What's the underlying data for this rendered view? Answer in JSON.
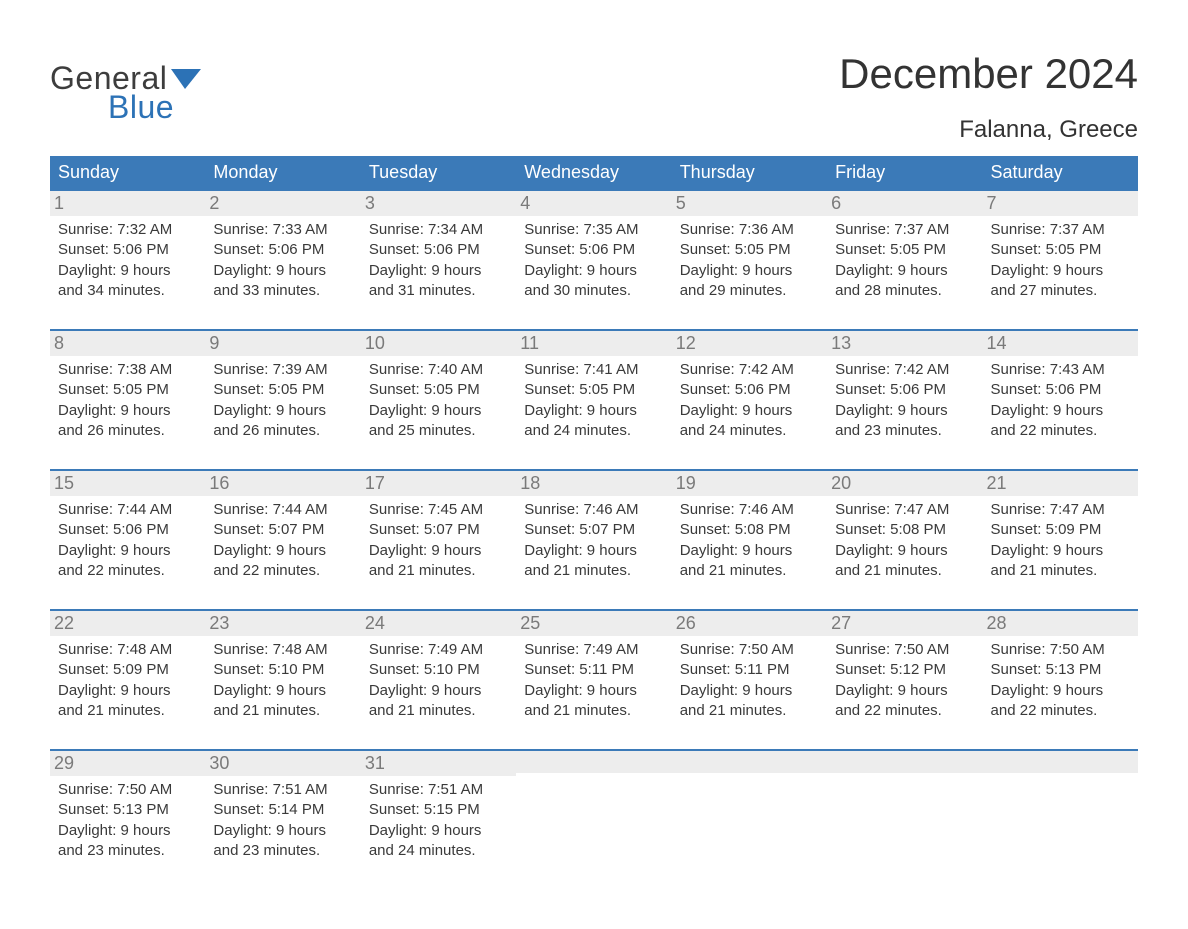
{
  "brand": {
    "word1": "General",
    "word2": "Blue",
    "logo_text_color": "#3d3d3d",
    "logo_accent_color": "#2c72b6"
  },
  "header": {
    "title": "December 2024",
    "location": "Falanna, Greece"
  },
  "colors": {
    "header_bg": "#3b7ab8",
    "header_text": "#ffffff",
    "daynum_bg": "#ededed",
    "daynum_border": "#3b7ab8",
    "daynum_text": "#7a7a7a",
    "body_text": "#3a3a3a",
    "page_bg": "#ffffff"
  },
  "day_headers": [
    "Sunday",
    "Monday",
    "Tuesday",
    "Wednesday",
    "Thursday",
    "Friday",
    "Saturday"
  ],
  "weeks": [
    [
      {
        "n": "1",
        "sunrise": "Sunrise: 7:32 AM",
        "sunset": "Sunset: 5:06 PM",
        "day1": "Daylight: 9 hours",
        "day2": "and 34 minutes."
      },
      {
        "n": "2",
        "sunrise": "Sunrise: 7:33 AM",
        "sunset": "Sunset: 5:06 PM",
        "day1": "Daylight: 9 hours",
        "day2": "and 33 minutes."
      },
      {
        "n": "3",
        "sunrise": "Sunrise: 7:34 AM",
        "sunset": "Sunset: 5:06 PM",
        "day1": "Daylight: 9 hours",
        "day2": "and 31 minutes."
      },
      {
        "n": "4",
        "sunrise": "Sunrise: 7:35 AM",
        "sunset": "Sunset: 5:06 PM",
        "day1": "Daylight: 9 hours",
        "day2": "and 30 minutes."
      },
      {
        "n": "5",
        "sunrise": "Sunrise: 7:36 AM",
        "sunset": "Sunset: 5:05 PM",
        "day1": "Daylight: 9 hours",
        "day2": "and 29 minutes."
      },
      {
        "n": "6",
        "sunrise": "Sunrise: 7:37 AM",
        "sunset": "Sunset: 5:05 PM",
        "day1": "Daylight: 9 hours",
        "day2": "and 28 minutes."
      },
      {
        "n": "7",
        "sunrise": "Sunrise: 7:37 AM",
        "sunset": "Sunset: 5:05 PM",
        "day1": "Daylight: 9 hours",
        "day2": "and 27 minutes."
      }
    ],
    [
      {
        "n": "8",
        "sunrise": "Sunrise: 7:38 AM",
        "sunset": "Sunset: 5:05 PM",
        "day1": "Daylight: 9 hours",
        "day2": "and 26 minutes."
      },
      {
        "n": "9",
        "sunrise": "Sunrise: 7:39 AM",
        "sunset": "Sunset: 5:05 PM",
        "day1": "Daylight: 9 hours",
        "day2": "and 26 minutes."
      },
      {
        "n": "10",
        "sunrise": "Sunrise: 7:40 AM",
        "sunset": "Sunset: 5:05 PM",
        "day1": "Daylight: 9 hours",
        "day2": "and 25 minutes."
      },
      {
        "n": "11",
        "sunrise": "Sunrise: 7:41 AM",
        "sunset": "Sunset: 5:05 PM",
        "day1": "Daylight: 9 hours",
        "day2": "and 24 minutes."
      },
      {
        "n": "12",
        "sunrise": "Sunrise: 7:42 AM",
        "sunset": "Sunset: 5:06 PM",
        "day1": "Daylight: 9 hours",
        "day2": "and 24 minutes."
      },
      {
        "n": "13",
        "sunrise": "Sunrise: 7:42 AM",
        "sunset": "Sunset: 5:06 PM",
        "day1": "Daylight: 9 hours",
        "day2": "and 23 minutes."
      },
      {
        "n": "14",
        "sunrise": "Sunrise: 7:43 AM",
        "sunset": "Sunset: 5:06 PM",
        "day1": "Daylight: 9 hours",
        "day2": "and 22 minutes."
      }
    ],
    [
      {
        "n": "15",
        "sunrise": "Sunrise: 7:44 AM",
        "sunset": "Sunset: 5:06 PM",
        "day1": "Daylight: 9 hours",
        "day2": "and 22 minutes."
      },
      {
        "n": "16",
        "sunrise": "Sunrise: 7:44 AM",
        "sunset": "Sunset: 5:07 PM",
        "day1": "Daylight: 9 hours",
        "day2": "and 22 minutes."
      },
      {
        "n": "17",
        "sunrise": "Sunrise: 7:45 AM",
        "sunset": "Sunset: 5:07 PM",
        "day1": "Daylight: 9 hours",
        "day2": "and 21 minutes."
      },
      {
        "n": "18",
        "sunrise": "Sunrise: 7:46 AM",
        "sunset": "Sunset: 5:07 PM",
        "day1": "Daylight: 9 hours",
        "day2": "and 21 minutes."
      },
      {
        "n": "19",
        "sunrise": "Sunrise: 7:46 AM",
        "sunset": "Sunset: 5:08 PM",
        "day1": "Daylight: 9 hours",
        "day2": "and 21 minutes."
      },
      {
        "n": "20",
        "sunrise": "Sunrise: 7:47 AM",
        "sunset": "Sunset: 5:08 PM",
        "day1": "Daylight: 9 hours",
        "day2": "and 21 minutes."
      },
      {
        "n": "21",
        "sunrise": "Sunrise: 7:47 AM",
        "sunset": "Sunset: 5:09 PM",
        "day1": "Daylight: 9 hours",
        "day2": "and 21 minutes."
      }
    ],
    [
      {
        "n": "22",
        "sunrise": "Sunrise: 7:48 AM",
        "sunset": "Sunset: 5:09 PM",
        "day1": "Daylight: 9 hours",
        "day2": "and 21 minutes."
      },
      {
        "n": "23",
        "sunrise": "Sunrise: 7:48 AM",
        "sunset": "Sunset: 5:10 PM",
        "day1": "Daylight: 9 hours",
        "day2": "and 21 minutes."
      },
      {
        "n": "24",
        "sunrise": "Sunrise: 7:49 AM",
        "sunset": "Sunset: 5:10 PM",
        "day1": "Daylight: 9 hours",
        "day2": "and 21 minutes."
      },
      {
        "n": "25",
        "sunrise": "Sunrise: 7:49 AM",
        "sunset": "Sunset: 5:11 PM",
        "day1": "Daylight: 9 hours",
        "day2": "and 21 minutes."
      },
      {
        "n": "26",
        "sunrise": "Sunrise: 7:50 AM",
        "sunset": "Sunset: 5:11 PM",
        "day1": "Daylight: 9 hours",
        "day2": "and 21 minutes."
      },
      {
        "n": "27",
        "sunrise": "Sunrise: 7:50 AM",
        "sunset": "Sunset: 5:12 PM",
        "day1": "Daylight: 9 hours",
        "day2": "and 22 minutes."
      },
      {
        "n": "28",
        "sunrise": "Sunrise: 7:50 AM",
        "sunset": "Sunset: 5:13 PM",
        "day1": "Daylight: 9 hours",
        "day2": "and 22 minutes."
      }
    ],
    [
      {
        "n": "29",
        "sunrise": "Sunrise: 7:50 AM",
        "sunset": "Sunset: 5:13 PM",
        "day1": "Daylight: 9 hours",
        "day2": "and 23 minutes."
      },
      {
        "n": "30",
        "sunrise": "Sunrise: 7:51 AM",
        "sunset": "Sunset: 5:14 PM",
        "day1": "Daylight: 9 hours",
        "day2": "and 23 minutes."
      },
      {
        "n": "31",
        "sunrise": "Sunrise: 7:51 AM",
        "sunset": "Sunset: 5:15 PM",
        "day1": "Daylight: 9 hours",
        "day2": "and 24 minutes."
      },
      null,
      null,
      null,
      null
    ]
  ]
}
